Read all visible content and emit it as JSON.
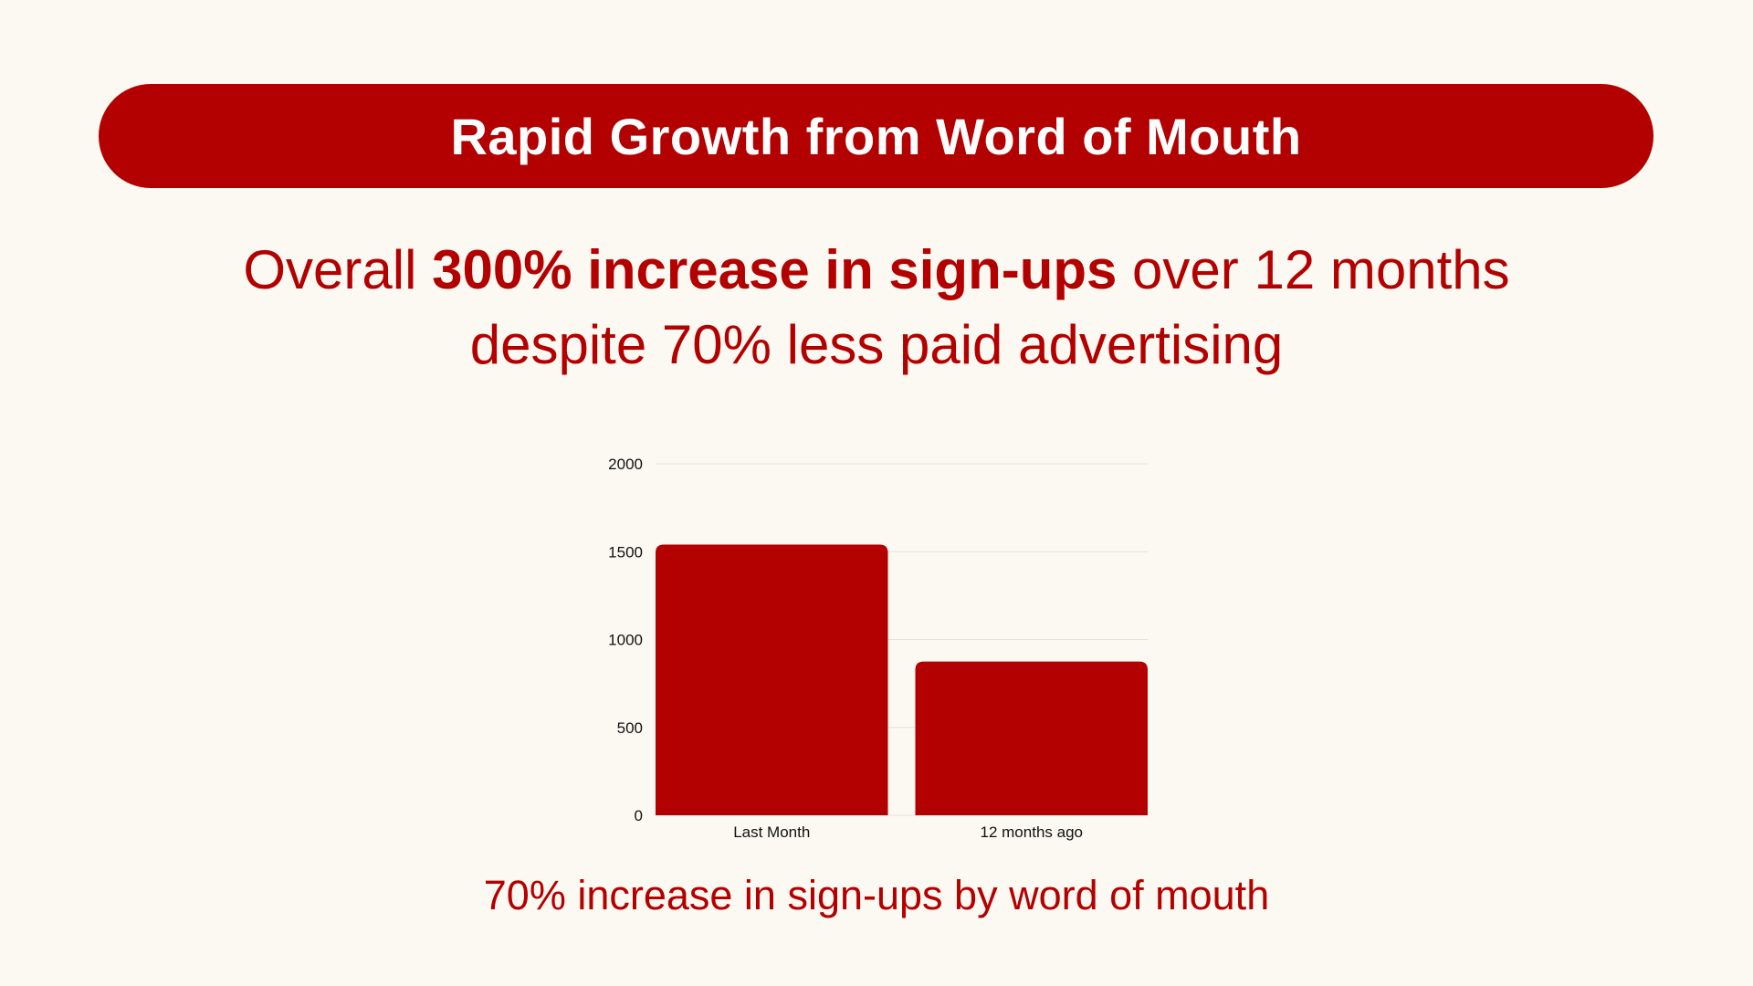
{
  "banner": {
    "title": "Rapid Growth from Word of Mouth"
  },
  "headline": {
    "line1_prefix": "Overall ",
    "line1_bold": "300% increase in sign-ups",
    "line1_suffix": " over 12 months",
    "line2": "despite 70% less paid advertising"
  },
  "footer": {
    "text": "70% increase in sign-ups by word of mouth"
  },
  "colors": {
    "accent": "#b30000",
    "background": "#fbf9f2",
    "grid": "#e4e2dc"
  },
  "chart_data": {
    "type": "bar",
    "categories": [
      "Last Month",
      "12 months ago"
    ],
    "values": [
      1540,
      875
    ],
    "yticks": [
      0,
      500,
      1000,
      1500,
      2000
    ],
    "ylim": [
      0,
      2000
    ],
    "grid": true,
    "title": "",
    "xlabel": "",
    "ylabel": ""
  }
}
